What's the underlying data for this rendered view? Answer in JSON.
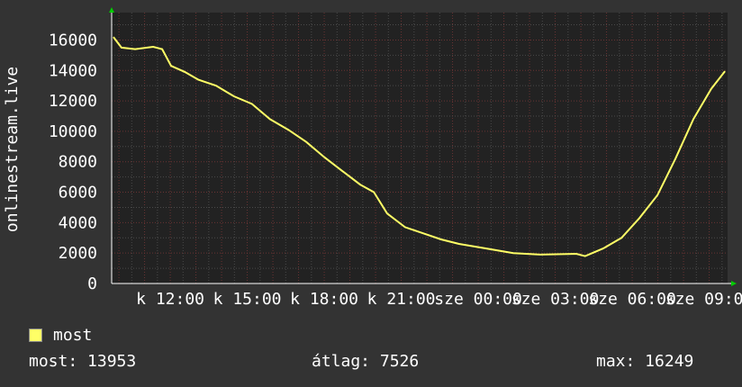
{
  "chart_data": {
    "type": "line",
    "ylabel": "onlinestream.live",
    "ylim": [
      0,
      17800
    ],
    "yticks": [
      0,
      2000,
      4000,
      6000,
      8000,
      10000,
      12000,
      14000,
      16000
    ],
    "xlim": [
      "09:43",
      "09:43 (+1 day)"
    ],
    "xtick_labels": [
      "k 12:00",
      "k 15:00",
      "k 18:00",
      "k 21:00",
      "sze 00:00",
      "sze 03:00",
      "sze 06:00",
      "sze 09:00"
    ],
    "xtick_hours": [
      12,
      15,
      18,
      21,
      24,
      27,
      30,
      33
    ],
    "grid": true,
    "series": [
      {
        "name": "most",
        "color": "#ffff66",
        "x": [
          "09:47",
          "10:06",
          "10:38",
          "11:20",
          "11:41",
          "12:02",
          "12:34",
          "13:05",
          "13:47",
          "14:29",
          "15:11",
          "15:53",
          "16:36",
          "17:18",
          "18:00",
          "18:42",
          "19:24",
          "19:56",
          "20:27",
          "21:09",
          "21:51",
          "22:33",
          "23:15",
          "00:19",
          "01:22",
          "02:25",
          "03:49",
          "04:10",
          "04:52",
          "05:35",
          "06:17",
          "06:59",
          "07:41",
          "08:23",
          "09:05",
          "09:37"
        ],
        "values": [
          16200,
          15500,
          15400,
          15550,
          15400,
          14300,
          13900,
          13400,
          13000,
          12300,
          11800,
          10800,
          10100,
          9300,
          8300,
          7400,
          6500,
          6000,
          4600,
          3700,
          3300,
          2900,
          2600,
          2300,
          2000,
          1900,
          1950,
          1800,
          2300,
          3000,
          4300,
          5800,
          8200,
          10800,
          12800,
          13950
        ]
      }
    ],
    "legend": {
      "position": "bottom-left",
      "entries": [
        "most"
      ]
    }
  },
  "stats": {
    "current": "most: 13953",
    "average": "átlag: 7526",
    "max": "max: 16249"
  }
}
